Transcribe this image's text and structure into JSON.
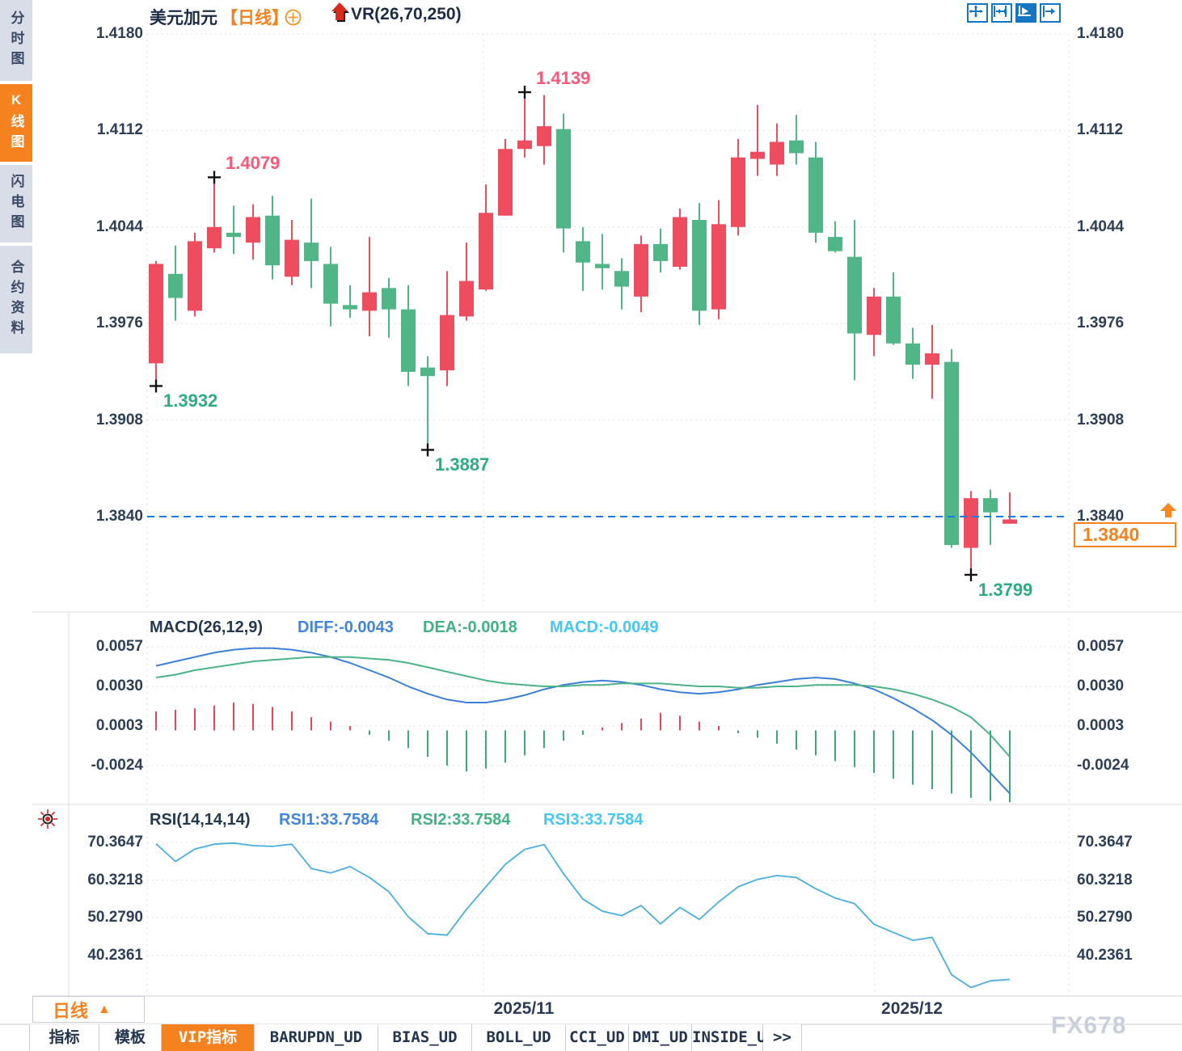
{
  "sidebar": {
    "items": [
      "分时图",
      "K线图",
      "闪电图",
      "合约资料"
    ],
    "active": "K线图"
  },
  "header": {
    "symbol": "美元加元",
    "period_tag": "【日线】",
    "indicator": "VR(26,70,250)"
  },
  "toolbar_icons": [
    "crosshair-icon",
    "axis-range-icon",
    "auto-follow-icon",
    "go-latest-icon"
  ],
  "bottom": {
    "period_selector": "日线",
    "x_labels": [
      "2025/11",
      "2025/12"
    ],
    "watermark": "FX678",
    "tabs": [
      "指标",
      "模板",
      "VIP指标",
      "BARUPDN_UD",
      "BIAS_UD",
      "BOLL_UD",
      "CCI_UD",
      "DMI_UD",
      "INSIDE_UD",
      ">>"
    ],
    "active_tab": "VIP指标"
  },
  "colors": {
    "up_candle": "#ee4d60",
    "down_candle": "#50b687",
    "accent_orange": "#f5821e",
    "diff_line": "#3b7fd8",
    "dea_line": "#4cb287",
    "macd_text": "#46c6f2",
    "rsi_line": "#4aaede",
    "current_price_line": "#1b7ce8"
  },
  "chart_data": [
    {
      "type": "candlestick",
      "title": "美元加元 日线",
      "y_ticks": [
        1.418,
        1.4112,
        1.4044,
        1.3976,
        1.3908,
        1.384
      ],
      "current_price": 1.384,
      "current_price_label": "1.3840",
      "annotations": [
        {
          "text": "1.4079",
          "price": 1.4079,
          "col": 4,
          "kind": "high"
        },
        {
          "text": "1.4139",
          "price": 1.4139,
          "col": 20,
          "kind": "high"
        },
        {
          "text": "1.3932",
          "price": 1.3932,
          "col": 1,
          "kind": "low"
        },
        {
          "text": "1.3887",
          "price": 1.3887,
          "col": 15,
          "kind": "low"
        },
        {
          "text": "1.3799",
          "price": 1.3799,
          "col": 43,
          "kind": "low"
        }
      ],
      "ohlc": [
        [
          1.3948,
          1.402,
          1.3932,
          1.4018
        ],
        [
          1.4011,
          1.4031,
          1.3978,
          1.3994
        ],
        [
          1.3985,
          1.404,
          1.3981,
          1.4034
        ],
        [
          1.4029,
          1.4079,
          1.4026,
          1.4044
        ],
        [
          1.404,
          1.4059,
          1.4025,
          1.4037
        ],
        [
          1.4033,
          1.406,
          1.4021,
          1.4051
        ],
        [
          1.4052,
          1.4066,
          1.4007,
          1.4017
        ],
        [
          1.4009,
          1.4049,
          1.4003,
          1.4035
        ],
        [
          1.4033,
          1.4064,
          1.4001,
          1.402
        ],
        [
          1.4018,
          1.403,
          1.3974,
          1.399
        ],
        [
          1.3989,
          1.4003,
          1.398,
          1.3986
        ],
        [
          1.3985,
          1.4037,
          1.3967,
          1.3998
        ],
        [
          1.4001,
          1.4008,
          1.3966,
          1.3986
        ],
        [
          1.3986,
          1.4003,
          1.3932,
          1.3942
        ],
        [
          1.3945,
          1.3953,
          1.3887,
          1.3939
        ],
        [
          1.3943,
          1.4013,
          1.3932,
          1.3982
        ],
        [
          1.3981,
          1.4033,
          1.3978,
          1.4006
        ],
        [
          1.4,
          1.4074,
          1.3999,
          1.4054
        ],
        [
          1.4052,
          1.4106,
          1.4052,
          1.4099
        ],
        [
          1.4099,
          1.4139,
          1.4093,
          1.4105
        ],
        [
          1.4101,
          1.4137,
          1.4088,
          1.4115
        ],
        [
          1.4113,
          1.4124,
          1.4026,
          1.4043
        ],
        [
          1.4034,
          1.4044,
          1.3999,
          1.4019
        ],
        [
          1.4018,
          1.4039,
          1.4,
          1.4015
        ],
        [
          1.4013,
          1.4022,
          1.3986,
          1.4002
        ],
        [
          1.3995,
          1.4038,
          1.3984,
          1.4032
        ],
        [
          1.4032,
          1.4043,
          1.4012,
          1.402
        ],
        [
          1.4016,
          1.4057,
          1.4014,
          1.4051
        ],
        [
          1.4049,
          1.4061,
          1.3975,
          1.3985
        ],
        [
          1.3986,
          1.4063,
          1.3979,
          1.4046
        ],
        [
          1.4044,
          1.4106,
          1.4038,
          1.4093
        ],
        [
          1.4092,
          1.413,
          1.408,
          1.4097
        ],
        [
          1.4088,
          1.4117,
          1.408,
          1.4104
        ],
        [
          1.4105,
          1.4123,
          1.4088,
          1.4096
        ],
        [
          1.4093,
          1.4104,
          1.4033,
          1.404
        ],
        [
          1.4037,
          1.4048,
          1.4026,
          1.4027
        ],
        [
          1.4023,
          1.4049,
          1.3936,
          1.3969
        ],
        [
          1.3968,
          1.4001,
          1.3953,
          1.3995
        ],
        [
          1.3995,
          1.4012,
          1.3961,
          1.3962
        ],
        [
          1.3962,
          1.3973,
          1.3937,
          1.3947
        ],
        [
          1.3947,
          1.3975,
          1.3923,
          1.3955
        ],
        [
          1.3949,
          1.3958,
          1.3818,
          1.382
        ],
        [
          1.3818,
          1.3858,
          1.3799,
          1.3853
        ],
        [
          1.3853,
          1.3859,
          1.382,
          1.3843
        ],
        [
          1.3835,
          1.3857,
          1.3835,
          1.3838
        ]
      ]
    },
    {
      "type": "macd",
      "title": "MACD(26,12,9)",
      "diff_label": "DIFF:-0.0043",
      "dea_label": "DEA:-0.0018",
      "macd_label": "MACD:-0.0049",
      "y_ticks": [
        0.0057,
        0.003,
        0.0003,
        -0.0024
      ],
      "diff": [
        0.0044,
        0.0047,
        0.005,
        0.0053,
        0.0055,
        0.0056,
        0.0056,
        0.0055,
        0.0053,
        0.005,
        0.0046,
        0.0041,
        0.0036,
        0.003,
        0.0025,
        0.0021,
        0.0019,
        0.0019,
        0.0021,
        0.0024,
        0.0028,
        0.0031,
        0.0033,
        0.0034,
        0.0033,
        0.0031,
        0.0028,
        0.0026,
        0.0025,
        0.0026,
        0.0028,
        0.0031,
        0.0033,
        0.0035,
        0.0036,
        0.0035,
        0.0032,
        0.0028,
        0.0022,
        0.0015,
        0.0007,
        -0.0003,
        -0.0015,
        -0.0029,
        -0.0043
      ],
      "dea": [
        0.0036,
        0.0038,
        0.0041,
        0.0043,
        0.0045,
        0.0047,
        0.0048,
        0.0049,
        0.005,
        0.005,
        0.005,
        0.0049,
        0.0048,
        0.0046,
        0.0043,
        0.004,
        0.0037,
        0.0034,
        0.0032,
        0.0031,
        0.003,
        0.003,
        0.0031,
        0.0031,
        0.0032,
        0.0032,
        0.0032,
        0.0031,
        0.003,
        0.003,
        0.0029,
        0.0029,
        0.003,
        0.003,
        0.0031,
        0.0031,
        0.0031,
        0.003,
        0.0028,
        0.0025,
        0.0021,
        0.0016,
        0.0009,
        -0.0003,
        -0.0018
      ],
      "hist": [
        0.0013,
        0.0014,
        0.0015,
        0.0017,
        0.0019,
        0.0018,
        0.0016,
        0.0013,
        0.0009,
        0.0006,
        0.0003,
        -0.0003,
        -0.0007,
        -0.0012,
        -0.0018,
        -0.0024,
        -0.0028,
        -0.0026,
        -0.0022,
        -0.0017,
        -0.0012,
        -0.0007,
        -0.0003,
        0.0002,
        0.0005,
        0.0008,
        0.0012,
        0.001,
        0.0006,
        0.0003,
        -0.0002,
        -0.0005,
        -0.0009,
        -0.0013,
        -0.0017,
        -0.0021,
        -0.0025,
        -0.0029,
        -0.0033,
        -0.0037,
        -0.004,
        -0.0043,
        -0.0046,
        -0.0048,
        -0.0049
      ]
    },
    {
      "type": "line",
      "title": "RSI(14,14,14)",
      "rsi1_label": "RSI1:33.7584",
      "rsi2_label": "RSI2:33.7584",
      "rsi3_label": "RSI3:33.7584",
      "y_ticks": [
        70.3647,
        60.3218,
        50.279,
        40.2361
      ],
      "values": [
        70.0,
        65.3,
        68.6,
        69.9,
        70.2,
        69.5,
        69.3,
        69.9,
        63.4,
        62.2,
        63.9,
        61.0,
        57.2,
        50.5,
        46.0,
        45.6,
        52.5,
        58.5,
        64.5,
        68.5,
        69.8,
        62.0,
        55.2,
        52.0,
        50.8,
        53.5,
        48.6,
        53.0,
        49.8,
        54.5,
        58.5,
        60.5,
        61.5,
        61.0,
        58.0,
        55.5,
        54.0,
        48.5,
        46.3,
        44.2,
        45.0,
        35.0,
        31.6,
        33.4,
        33.7584
      ]
    }
  ]
}
